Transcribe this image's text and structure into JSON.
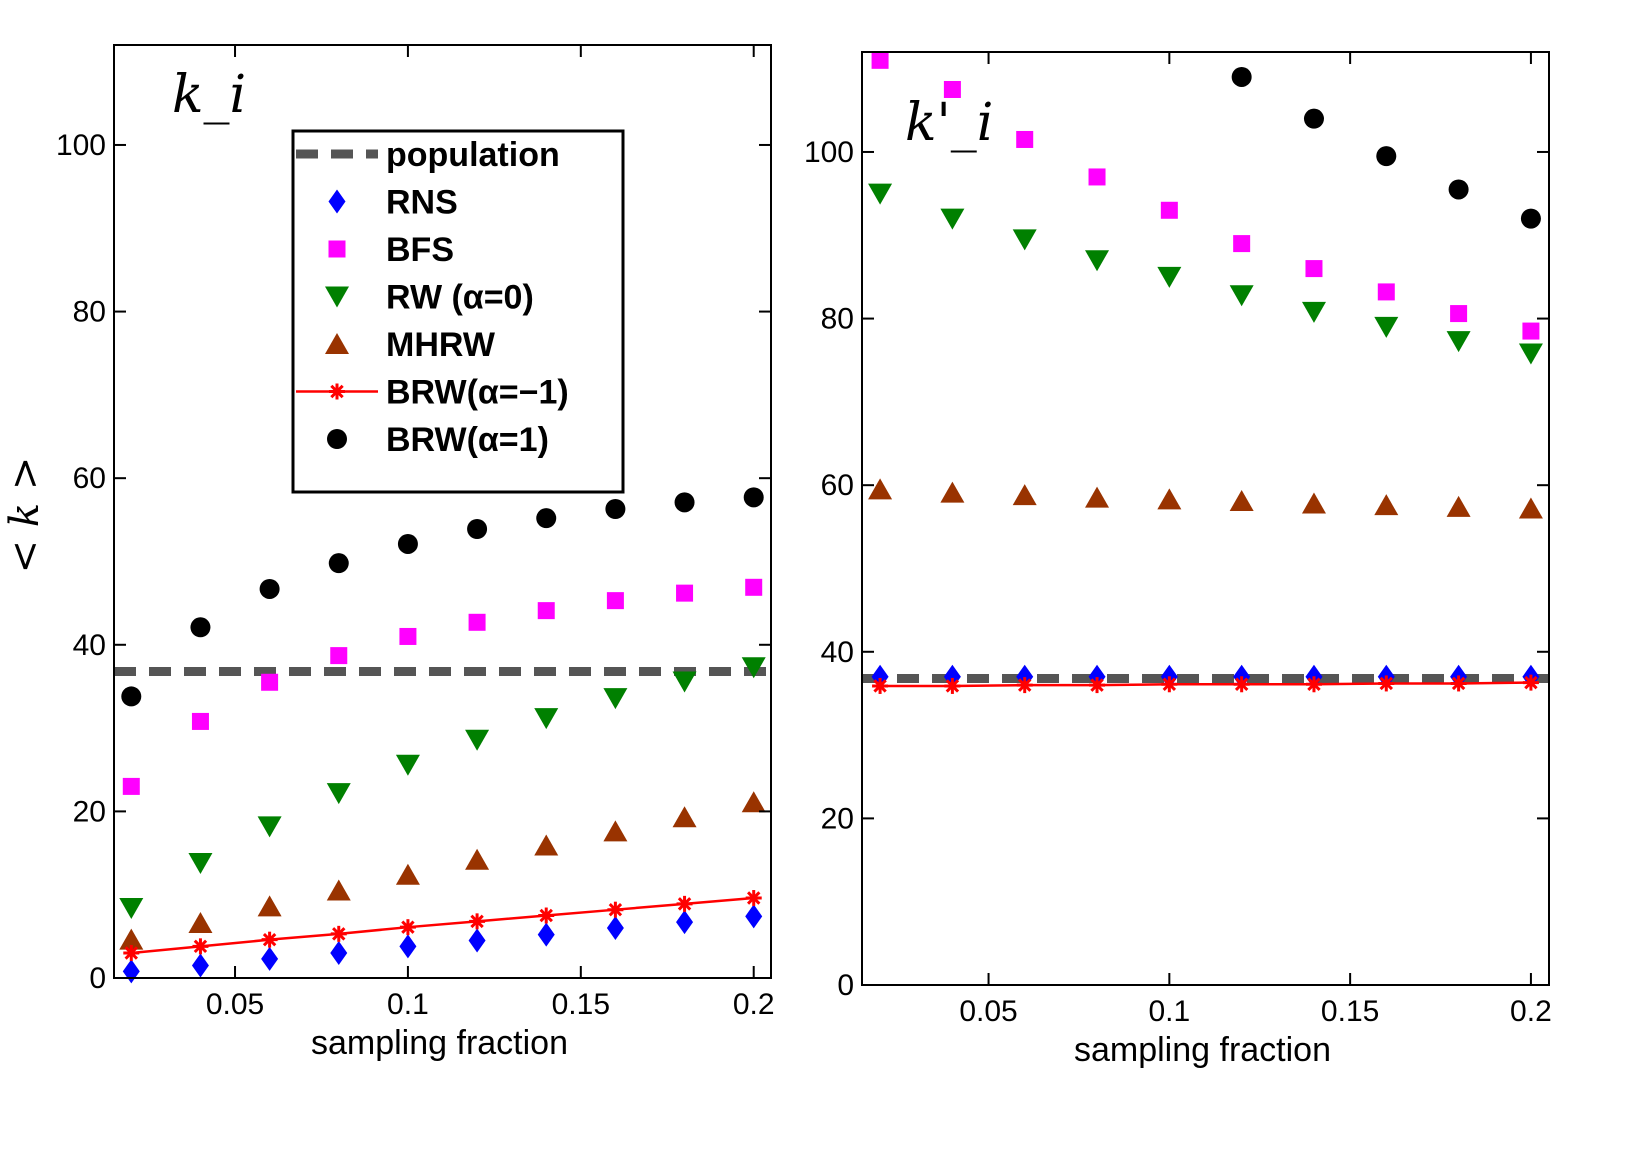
{
  "chart_data": {
    "type": "scatter",
    "ylabel": "< k >",
    "legend": {
      "placement": "inside-left-panel-top",
      "entries": [
        {
          "key": "population",
          "label": "population",
          "marker": "dashed-line",
          "color": "#555555"
        },
        {
          "key": "RNS",
          "label": "RNS",
          "marker": "diamond",
          "color": "#0000ff"
        },
        {
          "key": "BFS",
          "label": "BFS",
          "marker": "square",
          "color": "#ff00ff"
        },
        {
          "key": "RW",
          "label": "RW (α=0)",
          "marker": "triangle-down",
          "color": "#008000"
        },
        {
          "key": "MHRW",
          "label": "MHRW",
          "marker": "triangle-up",
          "color": "#993300"
        },
        {
          "key": "BRWm1",
          "label": "BRW(α=−1)",
          "marker": "star-line",
          "color": "#ff0000"
        },
        {
          "key": "BRW1",
          "label": "BRW(α=1)",
          "marker": "circle",
          "color": "#000000"
        }
      ]
    },
    "panels": [
      {
        "panel_label": "k_i",
        "xlabel": "sampling fraction",
        "xlim": [
          0.015,
          0.205
        ],
        "ylim": [
          0,
          112
        ],
        "xticks": [
          0.05,
          0.1,
          0.15,
          0.2
        ],
        "xtick_labels": [
          "0.05",
          "0.1",
          "0.15",
          "0.2"
        ],
        "yticks": [
          0,
          20,
          40,
          60,
          80,
          100
        ],
        "ytick_labels": [
          "0",
          "20",
          "40",
          "60",
          "80",
          "100"
        ],
        "x": [
          0.02,
          0.04,
          0.06,
          0.08,
          0.1,
          0.12,
          0.14,
          0.16,
          0.18,
          0.2
        ],
        "series": [
          {
            "key": "population",
            "values": [
              36.8,
              36.8,
              36.8,
              36.8,
              36.8,
              36.8,
              36.8,
              36.8,
              36.8,
              36.8
            ]
          },
          {
            "key": "RNS",
            "values": [
              0.8,
              1.5,
              2.3,
              3.0,
              3.8,
              4.5,
              5.2,
              6.0,
              6.7,
              7.4
            ]
          },
          {
            "key": "BFS",
            "values": [
              23,
              30.8,
              35.5,
              38.7,
              41,
              42.7,
              44.1,
              45.3,
              46.2,
              46.9
            ]
          },
          {
            "key": "RW",
            "values": [
              8.4,
              13.8,
              18.2,
              22.2,
              25.6,
              28.6,
              31.2,
              33.6,
              35.6,
              37.3
            ]
          },
          {
            "key": "MHRW",
            "values": [
              4.6,
              6.6,
              8.6,
              10.5,
              12.4,
              14.2,
              15.9,
              17.6,
              19.3,
              21.1
            ]
          },
          {
            "key": "BRWm1",
            "values": [
              3.0,
              3.8,
              4.6,
              5.3,
              6.1,
              6.8,
              7.5,
              8.2,
              8.9,
              9.6
            ]
          },
          {
            "key": "BRW1",
            "values": [
              33.8,
              42.1,
              46.7,
              49.8,
              52.1,
              53.9,
              55.2,
              56.3,
              57.1,
              57.7
            ]
          }
        ]
      },
      {
        "panel_label": "k'_i",
        "xlabel": "sampling fraction",
        "xlim": [
          0.015,
          0.205
        ],
        "ylim": [
          0,
          112
        ],
        "xticks": [
          0.05,
          0.1,
          0.15,
          0.2
        ],
        "xtick_labels": [
          "0.05",
          "0.1",
          "0.15",
          "0.2"
        ],
        "yticks": [
          0,
          20,
          40,
          60,
          80,
          100
        ],
        "ytick_labels": [
          "0",
          "20",
          "40",
          "60",
          "80",
          "100"
        ],
        "x": [
          0.02,
          0.04,
          0.06,
          0.08,
          0.1,
          0.12,
          0.14,
          0.16,
          0.18,
          0.2
        ],
        "series": [
          {
            "key": "population",
            "values": [
              36.8,
              36.8,
              36.8,
              36.8,
              36.8,
              36.8,
              36.8,
              36.8,
              36.8,
              36.8
            ]
          },
          {
            "key": "RNS",
            "values": [
              37,
              37,
              37,
              37,
              37,
              37,
              37,
              37,
              37,
              37
            ]
          },
          {
            "key": "BFS",
            "values": [
              111,
              107.5,
              101.5,
              97,
              93,
              89,
              86,
              83.2,
              80.6,
              78.5
            ]
          },
          {
            "key": "RW",
            "values": [
              95,
              92,
              89.5,
              87,
              85,
              82.8,
              80.8,
              79,
              77.3,
              75.8
            ]
          },
          {
            "key": "MHRW",
            "values": [
              59.5,
              59.1,
              58.8,
              58.5,
              58.3,
              58.1,
              57.8,
              57.6,
              57.4,
              57.2
            ]
          },
          {
            "key": "BRWm1",
            "values": [
              35.9,
              35.9,
              36.0,
              36.0,
              36.1,
              36.1,
              36.1,
              36.2,
              36.2,
              36.3
            ]
          },
          {
            "key": "BRW1",
            "values": [
              null,
              null,
              null,
              null,
              null,
              109,
              104,
              99.5,
              95.5,
              92
            ]
          }
        ]
      }
    ]
  }
}
